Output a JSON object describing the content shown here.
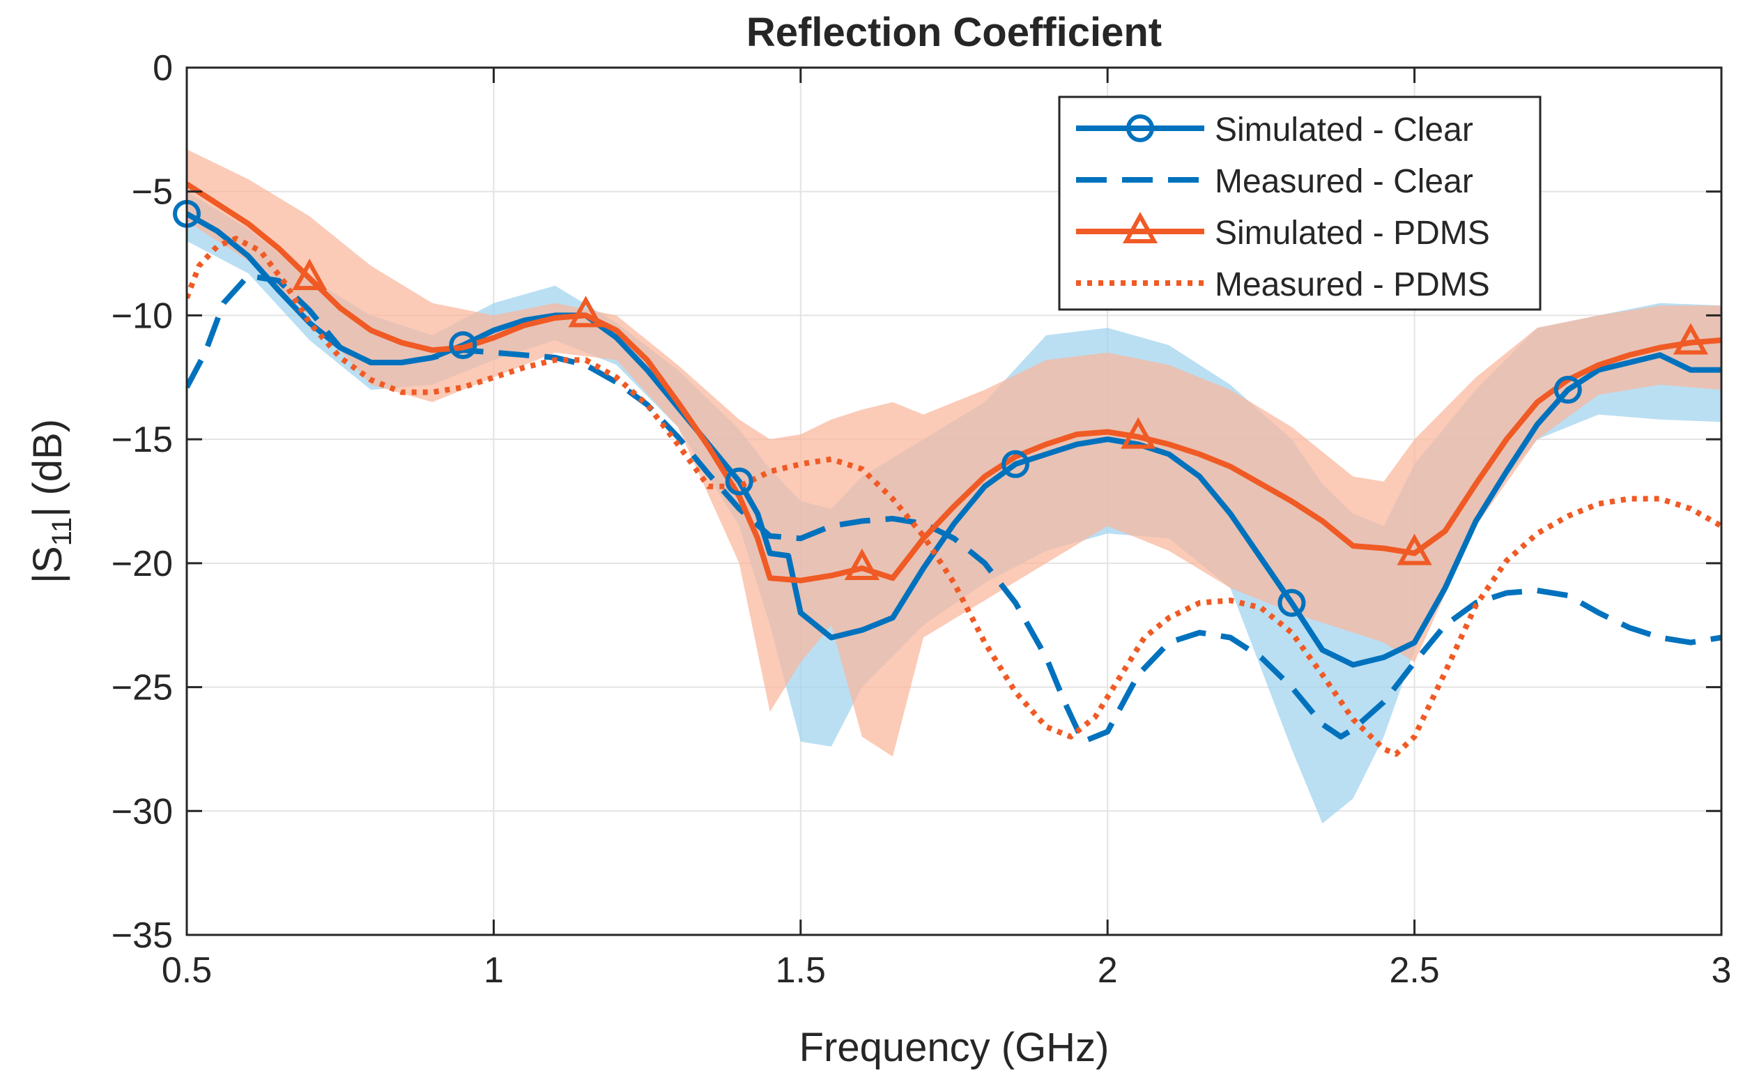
{
  "chart_data": {
    "type": "line",
    "title": "Reflection Coefficient",
    "xlabel": "Frequency (GHz)",
    "ylabel": {
      "prefix": "|S",
      "sub": "11",
      "suffix": "| (dB)"
    },
    "xlim": [
      0.5,
      3
    ],
    "ylim": [
      -35,
      0
    ],
    "xticks": [
      0.5,
      1,
      1.5,
      2,
      2.5,
      3
    ],
    "yticks": [
      0,
      -5,
      -10,
      -15,
      -20,
      -25,
      -30,
      -35
    ],
    "xtick_labels": [
      "0.5",
      "1",
      "1.5",
      "2",
      "2.5",
      "3"
    ],
    "ytick_labels": [
      "0",
      "−5",
      "−10",
      "−15",
      "−20",
      "−25",
      "−30",
      "−35"
    ],
    "grid": true,
    "legend_position": "top-right",
    "colors": {
      "clear": "#0072BD",
      "pdms": "#F05A24",
      "clear_band": "#9FD3EE",
      "pdms_band": "#F9B79D"
    },
    "bands": [
      {
        "name": "Clear uncertainty",
        "color": "#9FD3EE",
        "x": [
          0.5,
          0.6,
          0.7,
          0.8,
          0.9,
          1.0,
          1.1,
          1.2,
          1.3,
          1.4,
          1.45,
          1.5,
          1.55,
          1.6,
          1.7,
          1.8,
          1.9,
          2.0,
          2.1,
          2.2,
          2.3,
          2.35,
          2.4,
          2.45,
          2.5,
          2.6,
          2.7,
          2.8,
          2.9,
          3.0
        ],
        "upper": [
          -5.0,
          -6.5,
          -8.5,
          -10.0,
          -10.8,
          -9.5,
          -8.8,
          -10.3,
          -12.2,
          -14.6,
          -16.2,
          -17.5,
          -17.8,
          -16.5,
          -15.0,
          -13.5,
          -10.8,
          -10.5,
          -11.2,
          -12.8,
          -15.0,
          -16.8,
          -18.0,
          -18.5,
          -16.0,
          -13.0,
          -10.5,
          -10.0,
          -9.5,
          -9.6
        ],
        "lower": [
          -7.0,
          -8.3,
          -11.0,
          -13.0,
          -12.8,
          -11.8,
          -11.0,
          -12.0,
          -14.5,
          -18.5,
          -22.5,
          -27.2,
          -27.4,
          -25.0,
          -22.5,
          -20.8,
          -19.5,
          -18.8,
          -19.0,
          -21.0,
          -27.5,
          -30.5,
          -29.5,
          -27.0,
          -23.5,
          -18.0,
          -15.0,
          -14.0,
          -14.2,
          -14.3
        ]
      },
      {
        "name": "PDMS uncertainty",
        "color": "#F9B79D",
        "x": [
          0.5,
          0.6,
          0.7,
          0.8,
          0.9,
          1.0,
          1.1,
          1.2,
          1.3,
          1.4,
          1.45,
          1.5,
          1.55,
          1.6,
          1.65,
          1.7,
          1.8,
          1.9,
          2.0,
          2.1,
          2.2,
          2.3,
          2.4,
          2.45,
          2.5,
          2.6,
          2.7,
          2.8,
          2.9,
          3.0
        ],
        "upper": [
          -3.3,
          -4.5,
          -6.0,
          -8.0,
          -9.5,
          -10.0,
          -9.5,
          -10.0,
          -12.0,
          -14.2,
          -15.0,
          -14.8,
          -14.2,
          -13.8,
          -13.5,
          -14.0,
          -13.0,
          -11.8,
          -11.5,
          -12.0,
          -13.0,
          -14.5,
          -16.5,
          -16.7,
          -15.0,
          -12.5,
          -10.5,
          -10.0,
          -9.6,
          -9.6
        ],
        "lower": [
          -6.2,
          -7.8,
          -10.0,
          -12.8,
          -13.5,
          -12.5,
          -11.5,
          -11.8,
          -14.5,
          -20.0,
          -26.0,
          -24.0,
          -22.5,
          -27.0,
          -27.8,
          -23.0,
          -21.5,
          -20.0,
          -18.5,
          -19.5,
          -21.0,
          -22.0,
          -22.8,
          -23.2,
          -24.0,
          -18.5,
          -15.0,
          -13.2,
          -12.8,
          -13.0
        ]
      }
    ],
    "series": [
      {
        "name": "Simulated - Clear",
        "color": "#0072BD",
        "style": "solid",
        "marker": "circle",
        "x": [
          0.5,
          0.55,
          0.6,
          0.65,
          0.7,
          0.75,
          0.8,
          0.85,
          0.9,
          0.95,
          1.0,
          1.05,
          1.1,
          1.15,
          1.2,
          1.25,
          1.3,
          1.35,
          1.4,
          1.43,
          1.45,
          1.48,
          1.5,
          1.55,
          1.6,
          1.65,
          1.7,
          1.75,
          1.8,
          1.85,
          1.9,
          1.95,
          2.0,
          2.05,
          2.1,
          2.15,
          2.2,
          2.25,
          2.3,
          2.35,
          2.4,
          2.45,
          2.5,
          2.55,
          2.6,
          2.65,
          2.7,
          2.75,
          2.8,
          2.85,
          2.9,
          2.95,
          3.0
        ],
        "y": [
          -5.9,
          -6.6,
          -7.6,
          -9.0,
          -10.3,
          -11.3,
          -11.9,
          -11.9,
          -11.7,
          -11.2,
          -10.6,
          -10.2,
          -10.0,
          -10.0,
          -10.9,
          -12.2,
          -13.7,
          -15.2,
          -16.7,
          -18.0,
          -19.6,
          -19.7,
          -22.0,
          -23.0,
          -22.7,
          -22.2,
          -20.2,
          -18.4,
          -16.9,
          -16.0,
          -15.6,
          -15.2,
          -15.0,
          -15.2,
          -15.6,
          -16.5,
          -18.0,
          -19.8,
          -21.6,
          -23.5,
          -24.1,
          -23.8,
          -23.2,
          -21.0,
          -18.3,
          -16.3,
          -14.4,
          -13.0,
          -12.2,
          -11.9,
          -11.6,
          -12.2,
          -12.2
        ],
        "markers_x": [
          0.5,
          0.95,
          1.4,
          1.85,
          2.3,
          2.75
        ]
      },
      {
        "name": "Measured - Clear",
        "color": "#0072BD",
        "style": "dashed",
        "marker": "none",
        "x": [
          0.5,
          0.53,
          0.56,
          0.6,
          0.65,
          0.7,
          0.75,
          0.8,
          0.85,
          0.9,
          0.95,
          1.0,
          1.05,
          1.1,
          1.15,
          1.2,
          1.25,
          1.3,
          1.35,
          1.4,
          1.45,
          1.5,
          1.55,
          1.6,
          1.65,
          1.7,
          1.75,
          1.8,
          1.85,
          1.9,
          1.93,
          1.96,
          2.0,
          2.05,
          2.1,
          2.15,
          2.2,
          2.25,
          2.3,
          2.35,
          2.38,
          2.4,
          2.45,
          2.5,
          2.55,
          2.6,
          2.65,
          2.7,
          2.75,
          2.8,
          2.85,
          2.9,
          2.95,
          3.0
        ],
        "y": [
          -12.9,
          -11.5,
          -9.5,
          -8.4,
          -8.6,
          -9.8,
          -11.3,
          -11.9,
          -11.9,
          -11.7,
          -11.4,
          -11.5,
          -11.6,
          -11.7,
          -12.0,
          -12.7,
          -13.6,
          -14.9,
          -16.4,
          -17.8,
          -18.9,
          -19.0,
          -18.5,
          -18.3,
          -18.2,
          -18.4,
          -19.0,
          -20.0,
          -21.6,
          -23.8,
          -25.6,
          -27.2,
          -26.8,
          -24.5,
          -23.2,
          -22.8,
          -23.0,
          -23.8,
          -25.0,
          -26.5,
          -27.0,
          -26.7,
          -25.6,
          -24.0,
          -22.5,
          -21.6,
          -21.2,
          -21.1,
          -21.3,
          -22.0,
          -22.6,
          -23.0,
          -23.2,
          -23.0
        ]
      },
      {
        "name": "Simulated - PDMS",
        "color": "#F05A24",
        "style": "solid",
        "marker": "triangle",
        "x": [
          0.5,
          0.55,
          0.6,
          0.65,
          0.7,
          0.75,
          0.8,
          0.85,
          0.9,
          0.95,
          1.0,
          1.05,
          1.1,
          1.15,
          1.2,
          1.25,
          1.3,
          1.35,
          1.4,
          1.43,
          1.45,
          1.5,
          1.55,
          1.6,
          1.65,
          1.7,
          1.75,
          1.8,
          1.85,
          1.9,
          1.95,
          2.0,
          2.05,
          2.1,
          2.15,
          2.2,
          2.25,
          2.3,
          2.35,
          2.4,
          2.45,
          2.5,
          2.55,
          2.6,
          2.65,
          2.7,
          2.75,
          2.8,
          2.85,
          2.9,
          2.95,
          3.0
        ],
        "y": [
          -4.7,
          -5.5,
          -6.3,
          -7.3,
          -8.5,
          -9.7,
          -10.6,
          -11.1,
          -11.4,
          -11.3,
          -10.9,
          -10.4,
          -10.1,
          -10.0,
          -10.6,
          -11.8,
          -13.5,
          -15.3,
          -17.3,
          -19.0,
          -20.6,
          -20.7,
          -20.5,
          -20.2,
          -20.6,
          -19.0,
          -17.7,
          -16.5,
          -15.7,
          -15.2,
          -14.8,
          -14.7,
          -14.9,
          -15.2,
          -15.6,
          -16.1,
          -16.8,
          -17.5,
          -18.3,
          -19.3,
          -19.4,
          -19.6,
          -18.7,
          -16.8,
          -15.0,
          -13.5,
          -12.6,
          -12.0,
          -11.6,
          -11.3,
          -11.1,
          -11.0
        ],
        "markers_x": [
          0.7,
          1.15,
          1.6,
          2.05,
          2.5,
          2.95
        ]
      },
      {
        "name": "Measured - PDMS",
        "color": "#F05A24",
        "style": "dotted",
        "marker": "none",
        "x": [
          0.5,
          0.52,
          0.55,
          0.58,
          0.62,
          0.66,
          0.7,
          0.75,
          0.8,
          0.85,
          0.9,
          0.95,
          1.0,
          1.05,
          1.1,
          1.15,
          1.2,
          1.25,
          1.3,
          1.35,
          1.4,
          1.45,
          1.5,
          1.55,
          1.6,
          1.65,
          1.7,
          1.75,
          1.8,
          1.85,
          1.9,
          1.94,
          1.98,
          2.02,
          2.06,
          2.1,
          2.15,
          2.2,
          2.25,
          2.3,
          2.35,
          2.4,
          2.45,
          2.47,
          2.5,
          2.55,
          2.6,
          2.65,
          2.7,
          2.75,
          2.8,
          2.85,
          2.9,
          2.95,
          3.0
        ],
        "y": [
          -9.3,
          -8.0,
          -7.2,
          -6.9,
          -7.4,
          -8.7,
          -10.3,
          -11.7,
          -12.6,
          -13.1,
          -13.1,
          -12.9,
          -12.5,
          -12.1,
          -11.8,
          -11.8,
          -12.5,
          -13.6,
          -15.2,
          -16.9,
          -16.9,
          -16.3,
          -16.0,
          -15.8,
          -16.2,
          -17.4,
          -18.9,
          -20.8,
          -23.2,
          -25.2,
          -26.6,
          -27.0,
          -26.2,
          -24.6,
          -23.0,
          -22.2,
          -21.6,
          -21.5,
          -21.8,
          -22.8,
          -24.5,
          -26.3,
          -27.5,
          -27.7,
          -27.0,
          -24.4,
          -21.7,
          -19.9,
          -18.8,
          -18.1,
          -17.6,
          -17.4,
          -17.4,
          -17.8,
          -18.5
        ]
      }
    ]
  }
}
